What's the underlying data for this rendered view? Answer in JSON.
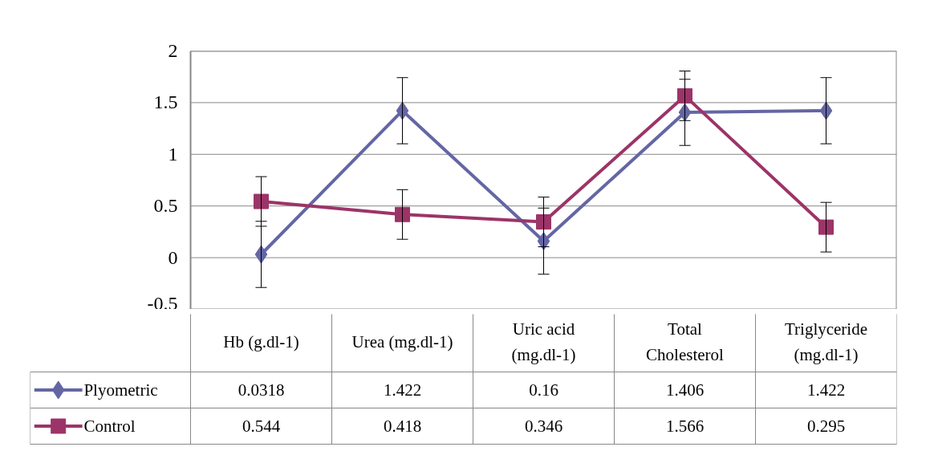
{
  "chart_data": {
    "type": "line",
    "categories": [
      "Hb (g.dl-1)",
      "Urea (mg.dl-1)",
      "Uric acid (mg.dl-1)",
      "Total Cholesterol",
      "Triglyceride (mg.dl-1)"
    ],
    "series": [
      {
        "name": "Plyometric",
        "color": "#6466a4",
        "marker": "diamond",
        "values": [
          0.0318,
          1.422,
          0.16,
          1.406,
          1.422
        ],
        "errors": [
          0.32,
          0.32,
          0.32,
          0.32,
          0.32
        ]
      },
      {
        "name": "Control",
        "color": "#9c3468",
        "marker": "square",
        "values": [
          0.544,
          0.418,
          0.346,
          1.566,
          0.295
        ],
        "errors": [
          0.24,
          0.24,
          0.24,
          0.24,
          0.24
        ]
      }
    ],
    "ylim": [
      -0.5,
      2
    ],
    "yticks": [
      -0.5,
      0,
      0.5,
      1,
      1.5,
      2
    ],
    "grid": "y",
    "data_labels": true,
    "legend": "bottom left",
    "line_style": "solid"
  }
}
